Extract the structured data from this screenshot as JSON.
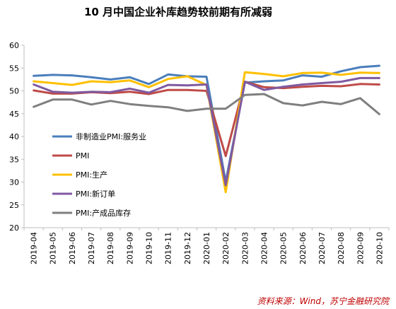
{
  "chart_data": {
    "type": "line",
    "title": "10 月中国企业补库趋势较前期有所减弱",
    "xlabel": "",
    "ylabel": "",
    "ylim": [
      20,
      60
    ],
    "yticks": [
      20,
      25,
      30,
      35,
      40,
      45,
      50,
      55,
      60
    ],
    "grid": false,
    "legend_position": "center-left",
    "categories": [
      "2019-04",
      "2019-05",
      "2019-06",
      "2019-07",
      "2019-08",
      "2019-09",
      "2019-10",
      "2019-11",
      "2019-12",
      "2020-01",
      "2020-02",
      "2020-03",
      "2020-04",
      "2020-05",
      "2020-06",
      "2020-07",
      "2020-08",
      "2020-09",
      "2020-10"
    ],
    "series": [
      {
        "name": "非制造业PMI:服务业",
        "color": "#4a7ebb",
        "values": [
          53.3,
          53.5,
          53.4,
          53.0,
          52.5,
          53.0,
          51.5,
          53.6,
          53.2,
          53.1,
          30.1,
          51.8,
          52.1,
          52.3,
          53.4,
          53.1,
          54.3,
          55.2,
          55.5
        ]
      },
      {
        "name": "PMI",
        "color": "#be4b48",
        "values": [
          50.1,
          49.4,
          49.4,
          49.7,
          49.5,
          49.8,
          49.3,
          50.2,
          50.2,
          50.0,
          35.7,
          52.0,
          50.8,
          50.6,
          50.9,
          51.1,
          51.0,
          51.5,
          51.4
        ]
      },
      {
        "name": "PMI:生产",
        "color": "#ffc000",
        "values": [
          52.1,
          51.7,
          51.3,
          52.1,
          51.9,
          52.3,
          50.8,
          52.6,
          53.2,
          51.3,
          27.8,
          54.1,
          53.7,
          53.2,
          53.9,
          54.0,
          53.5,
          54.0,
          53.9
        ]
      },
      {
        "name": "PMI:新订单",
        "color": "#7f5aa0",
        "values": [
          51.4,
          49.8,
          49.6,
          49.8,
          49.7,
          50.5,
          49.6,
          51.3,
          51.2,
          51.4,
          29.3,
          52.0,
          50.2,
          50.9,
          51.4,
          51.7,
          52.0,
          52.8,
          52.8
        ]
      },
      {
        "name": "PMI:产成品库存",
        "color": "#7f7f7f",
        "values": [
          46.5,
          48.1,
          48.1,
          47.0,
          47.8,
          47.1,
          46.7,
          46.4,
          45.6,
          46.1,
          46.1,
          49.1,
          49.3,
          47.3,
          46.8,
          47.6,
          47.1,
          48.4,
          44.9
        ]
      }
    ]
  },
  "source": "资料来源：Wind，苏宁金融研究院"
}
